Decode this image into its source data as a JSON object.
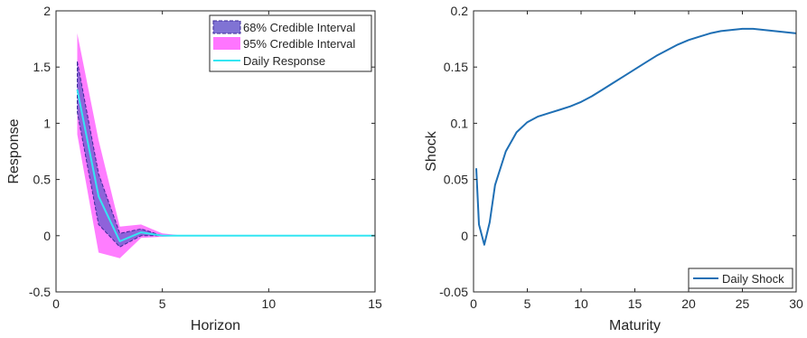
{
  "chart_data": [
    {
      "type": "line",
      "xlabel": "Horizon",
      "ylabel": "Response",
      "xlim": [
        0,
        15
      ],
      "ylim": [
        -0.5,
        2
      ],
      "xticks": [
        0,
        5,
        10,
        15
      ],
      "yticks": [
        -0.5,
        0,
        0.5,
        1,
        1.5,
        2
      ],
      "grid": false,
      "legend_position": "top-right",
      "series": [
        {
          "name": "68% Credible Interval",
          "kind": "band",
          "color": "#6A5ACD",
          "x": [
            1,
            2,
            3,
            4,
            5,
            6,
            7,
            8,
            9,
            10,
            11,
            12,
            13,
            14,
            15
          ],
          "lower": [
            1.1,
            0.1,
            -0.1,
            0.0,
            0.0,
            0,
            0,
            0,
            0,
            0,
            0,
            0,
            0,
            0,
            0
          ],
          "upper": [
            1.55,
            0.55,
            0.02,
            0.06,
            0.0,
            0,
            0,
            0,
            0,
            0,
            0,
            0,
            0,
            0,
            0
          ]
        },
        {
          "name": "95% Credible Interval",
          "kind": "band",
          "color": "#FF66FF",
          "x": [
            1,
            2,
            3,
            4,
            5,
            6,
            7,
            8,
            9,
            10,
            11,
            12,
            13,
            14,
            15
          ],
          "lower": [
            0.9,
            -0.15,
            -0.2,
            -0.02,
            -0.01,
            0,
            0,
            0,
            0,
            0,
            0,
            0,
            0,
            0,
            0
          ],
          "upper": [
            1.8,
            0.85,
            0.08,
            0.1,
            0.02,
            0,
            0,
            0,
            0,
            0,
            0,
            0,
            0,
            0,
            0
          ]
        },
        {
          "name": "Daily Response",
          "kind": "line",
          "color": "#33E6F2",
          "x": [
            1,
            2,
            3,
            4,
            5,
            6,
            7,
            8,
            9,
            10,
            11,
            12,
            13,
            14,
            15
          ],
          "values": [
            1.3,
            0.35,
            -0.05,
            0.03,
            0.0,
            0,
            0,
            0,
            0,
            0,
            0,
            0,
            0,
            0,
            0
          ]
        }
      ]
    },
    {
      "type": "line",
      "xlabel": "Maturity",
      "ylabel": "Shock",
      "xlim": [
        0,
        30
      ],
      "ylim": [
        -0.05,
        0.2
      ],
      "xticks": [
        0,
        5,
        10,
        15,
        20,
        25,
        30
      ],
      "yticks": [
        -0.05,
        0,
        0.05,
        0.1,
        0.15,
        0.2
      ],
      "grid": false,
      "legend_position": "bottom-right",
      "series": [
        {
          "name": "Daily Shock",
          "kind": "line",
          "color": "#1F6FB4",
          "x": [
            0.25,
            0.5,
            1,
            1.5,
            2,
            3,
            4,
            5,
            6,
            7,
            8,
            9,
            10,
            11,
            12,
            13,
            14,
            15,
            16,
            17,
            18,
            19,
            20,
            21,
            22,
            23,
            24,
            25,
            26,
            27,
            28,
            29,
            30
          ],
          "values": [
            0.06,
            0.01,
            -0.008,
            0.012,
            0.045,
            0.075,
            0.092,
            0.101,
            0.106,
            0.109,
            0.112,
            0.115,
            0.119,
            0.124,
            0.13,
            0.136,
            0.142,
            0.148,
            0.154,
            0.16,
            0.165,
            0.17,
            0.174,
            0.177,
            0.18,
            0.182,
            0.183,
            0.184,
            0.184,
            0.183,
            0.182,
            0.181,
            0.18
          ]
        }
      ]
    }
  ]
}
